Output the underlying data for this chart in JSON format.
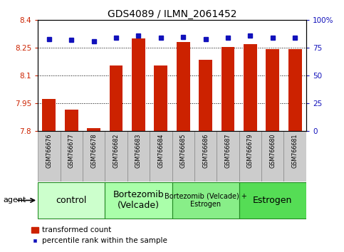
{
  "title": "GDS4089 / ILMN_2061452",
  "samples": [
    "GSM766676",
    "GSM766677",
    "GSM766678",
    "GSM766682",
    "GSM766683",
    "GSM766684",
    "GSM766685",
    "GSM766686",
    "GSM766687",
    "GSM766679",
    "GSM766680",
    "GSM766681"
  ],
  "transformed_count": [
    7.975,
    7.915,
    7.815,
    8.155,
    8.3,
    8.155,
    8.28,
    8.185,
    8.255,
    8.27,
    8.245,
    8.245
  ],
  "percentile_rank": [
    83,
    82,
    81,
    84,
    86,
    84,
    85,
    83,
    84,
    86,
    84,
    84
  ],
  "ylim_left": [
    7.8,
    8.4
  ],
  "ylim_right": [
    0,
    100
  ],
  "yticks_left": [
    7.8,
    7.95,
    8.1,
    8.25,
    8.4
  ],
  "yticks_right": [
    0,
    25,
    50,
    75,
    100
  ],
  "ytick_labels_left": [
    "7.8",
    "7.95",
    "8.1",
    "8.25",
    "8.4"
  ],
  "ytick_labels_right": [
    "0",
    "25",
    "50",
    "75",
    "100%"
  ],
  "groups": [
    {
      "label": "control",
      "start": 0,
      "end": 3,
      "color": "#ccffcc",
      "fontsize": 9
    },
    {
      "label": "Bortezomib\n(Velcade)",
      "start": 3,
      "end": 6,
      "color": "#aaffaa",
      "fontsize": 9
    },
    {
      "label": "Bortezomib (Velcade) +\nEstrogen",
      "start": 6,
      "end": 9,
      "color": "#88ee88",
      "fontsize": 7
    },
    {
      "label": "Estrogen",
      "start": 9,
      "end": 12,
      "color": "#55dd55",
      "fontsize": 9
    }
  ],
  "bar_color": "#cc2200",
  "dot_color": "#1111bb",
  "bar_bottom": 7.8,
  "agent_label": "agent",
  "legend_bar_label": "transformed count",
  "legend_dot_label": "percentile rank within the sample",
  "bg_color": "#ffffff",
  "tick_color_left": "#cc2200",
  "tick_color_right": "#1111bb",
  "sample_box_color": "#cccccc",
  "sample_box_edge": "#888888"
}
